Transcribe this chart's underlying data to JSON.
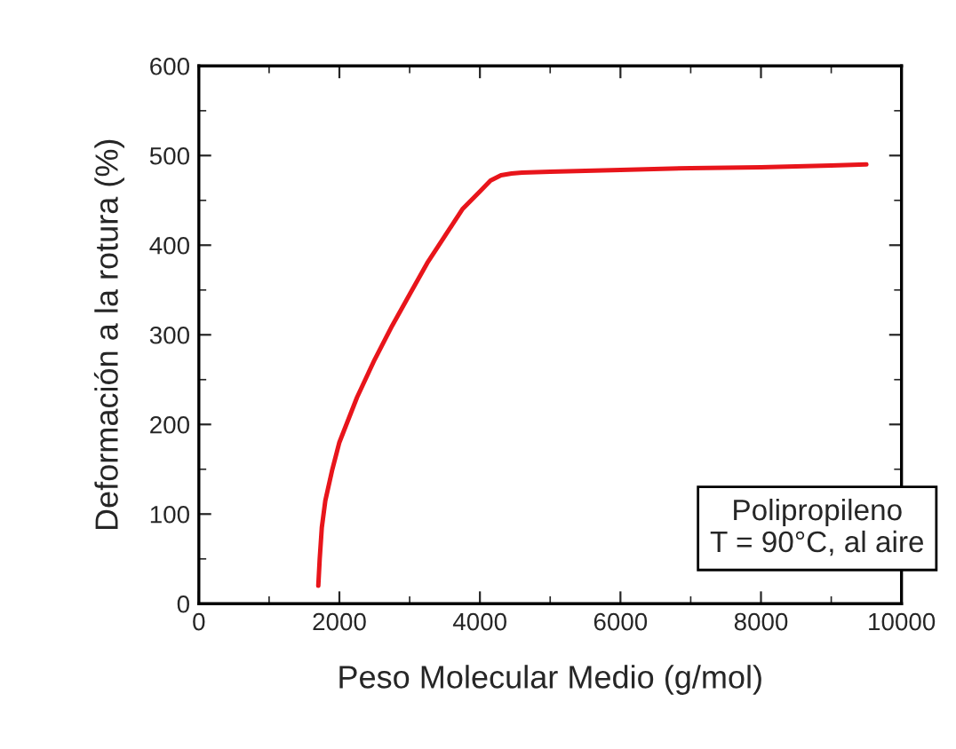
{
  "chart_data": {
    "type": "line",
    "xlabel": "Peso Molecular Medio (g/mol)",
    "ylabel": "Deformación a la rotura (%)",
    "series": [
      {
        "color": "#e8151b",
        "x": [
          1700,
          1720,
          1750,
          1800,
          1900,
          2000,
          2250,
          2500,
          2750,
          3000,
          3250,
          3500,
          3750,
          4000,
          4150,
          4300,
          4450,
          4600,
          5000,
          6000,
          7000,
          8000,
          9000,
          9500
        ],
        "values": [
          20,
          50,
          85,
          115,
          150,
          180,
          230,
          272,
          310,
          345,
          380,
          410,
          440,
          460,
          472,
          478,
          480,
          481,
          482,
          484,
          486,
          487,
          489,
          490
        ]
      }
    ],
    "xlim": [
      0,
      10000
    ],
    "ylim": [
      0,
      600
    ],
    "xticks": [
      0,
      2000,
      4000,
      6000,
      8000,
      10000
    ],
    "yticks": [
      0,
      100,
      200,
      300,
      400,
      500,
      600
    ],
    "grid": false,
    "legend": false,
    "line_style": "solid",
    "marker": "none",
    "annotations": [
      "Polipropileno",
      "T = 90°C, al aire"
    ]
  }
}
